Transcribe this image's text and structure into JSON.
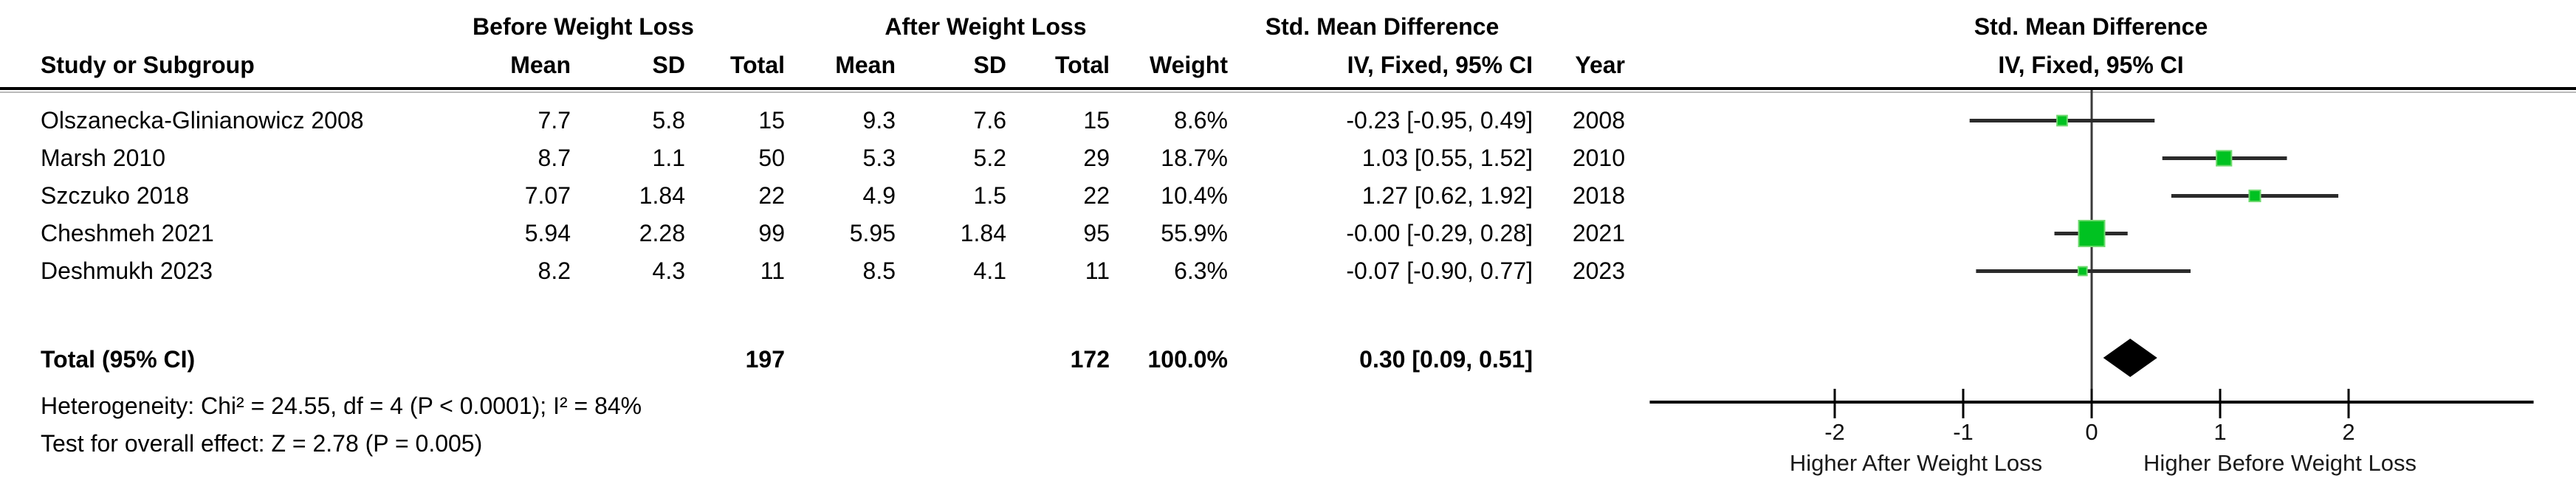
{
  "table": {
    "group_headers": {
      "before": "Before Weight Loss",
      "after": "After Weight Loss",
      "smd": "Std. Mean Difference"
    },
    "col_headers": {
      "study": "Study or Subgroup",
      "mean1": "Mean",
      "sd1": "SD",
      "total1": "Total",
      "mean2": "Mean",
      "sd2": "SD",
      "total2": "Total",
      "weight": "Weight",
      "ci": "IV, Fixed, 95% CI",
      "year": "Year"
    },
    "rows": [
      {
        "study": "Olszanecka-Glinianowicz 2008",
        "mean1": "7.7",
        "sd1": "5.8",
        "total1": "15",
        "mean2": "9.3",
        "sd2": "7.6",
        "total2": "15",
        "weight": "8.6%",
        "ci": "-0.23 [-0.95, 0.49]",
        "year": "2008"
      },
      {
        "study": "Marsh 2010",
        "mean1": "8.7",
        "sd1": "1.1",
        "total1": "50",
        "mean2": "5.3",
        "sd2": "5.2",
        "total2": "29",
        "weight": "18.7%",
        "ci": "1.03 [0.55, 1.52]",
        "year": "2010"
      },
      {
        "study": "Szczuko 2018",
        "mean1": "7.07",
        "sd1": "1.84",
        "total1": "22",
        "mean2": "4.9",
        "sd2": "1.5",
        "total2": "22",
        "weight": "10.4%",
        "ci": "1.27 [0.62, 1.92]",
        "year": "2018"
      },
      {
        "study": "Cheshmeh 2021",
        "mean1": "5.94",
        "sd1": "2.28",
        "total1": "99",
        "mean2": "5.95",
        "sd2": "1.84",
        "total2": "95",
        "weight": "55.9%",
        "ci": "-0.00 [-0.29, 0.28]",
        "year": "2021"
      },
      {
        "study": "Deshmukh 2023",
        "mean1": "8.2",
        "sd1": "4.3",
        "total1": "11",
        "mean2": "8.5",
        "sd2": "4.1",
        "total2": "11",
        "weight": "6.3%",
        "ci": "-0.07 [-0.90, 0.77]",
        "year": "2023"
      }
    ],
    "total_row": {
      "label": "Total (95% CI)",
      "total1": "197",
      "total2": "172",
      "weight": "100.0%",
      "ci": "0.30 [0.09, 0.51]"
    },
    "footnotes": {
      "heterogeneity": "Heterogeneity: Chi² = 24.55, df = 4 (P < 0.0001); I² = 84%",
      "overall_effect": "Test for overall effect: Z = 2.78 (P = 0.005)"
    }
  },
  "plot": {
    "header_line1": "Std. Mean Difference",
    "header_line2": "IV, Fixed, 95% CI",
    "axis_label_left": "Higher After Weight Loss",
    "axis_label_right": "Higher Before Weight Loss",
    "marker_color": "#00C221",
    "marker_edge_color": "#6FD96F",
    "ci_line_color": "#2B2B2B",
    "zero_line_color": "#3A3A3A",
    "axis_color": "#000000",
    "diamond_color": "#000000"
  },
  "chart_data": {
    "type": "forest",
    "effect_measure": "Std. Mean Difference (IV, Fixed, 95% CI)",
    "x_ticks": [
      -2,
      -1,
      0,
      1,
      2
    ],
    "xlim": [
      -3.44,
      3.44
    ],
    "studies": [
      {
        "name": "Olszanecka-Glinianowicz 2008",
        "smd": -0.23,
        "ci_low": -0.95,
        "ci_high": 0.49,
        "weight_pct": 8.6,
        "year": 2008
      },
      {
        "name": "Marsh 2010",
        "smd": 1.03,
        "ci_low": 0.55,
        "ci_high": 1.52,
        "weight_pct": 18.7,
        "year": 2010
      },
      {
        "name": "Szczuko 2018",
        "smd": 1.27,
        "ci_low": 0.62,
        "ci_high": 1.92,
        "weight_pct": 10.4,
        "year": 2018
      },
      {
        "name": "Cheshmeh 2021",
        "smd": -0.0,
        "ci_low": -0.29,
        "ci_high": 0.28,
        "weight_pct": 55.9,
        "year": 2021
      },
      {
        "name": "Deshmukh 2023",
        "smd": -0.07,
        "ci_low": -0.9,
        "ci_high": 0.77,
        "weight_pct": 6.3,
        "year": 2023
      }
    ],
    "total": {
      "label": "Total (95% CI)",
      "smd": 0.3,
      "ci_low": 0.09,
      "ci_high": 0.51,
      "n_before": 197,
      "n_after": 172,
      "weight_pct": 100.0
    }
  }
}
